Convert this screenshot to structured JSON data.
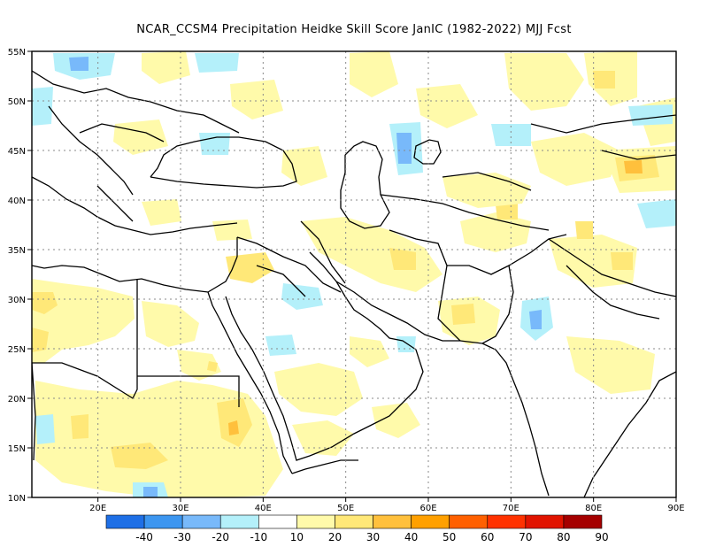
{
  "title": "NCAR_CCSM4  Precipitation Heidke Skill Score JanIC (1982-2022) MJJ Fcst",
  "lat_labels": [
    "55N",
    "50N",
    "45N",
    "40N",
    "35N",
    "30N",
    "25N",
    "20N",
    "15N",
    "10N"
  ],
  "lon_labels": [
    "20E",
    "30E",
    "40E",
    "50E",
    "60E",
    "70E",
    "80E",
    "90E"
  ],
  "map_extent": {
    "lon_min": 12,
    "lon_max": 90,
    "lat_min": 10,
    "lat_max": 55
  },
  "colorbar": {
    "labels": [
      "-40",
      "-30",
      "-20",
      "-10",
      "10",
      "20",
      "30",
      "40",
      "50",
      "60",
      "70",
      "80",
      "90"
    ],
    "colors": [
      "#1e6fe6",
      "#3c96f0",
      "#78b9fa",
      "#b4f0fa",
      "#ffffff",
      "#fffaaa",
      "#ffe878",
      "#ffc03c",
      "#ffa000",
      "#ff6000",
      "#ff3200",
      "#e11400",
      "#a50000"
    ]
  },
  "colors": {
    "coast": "#000000",
    "grid": "#8a8a8a",
    "frame": "#000000"
  }
}
